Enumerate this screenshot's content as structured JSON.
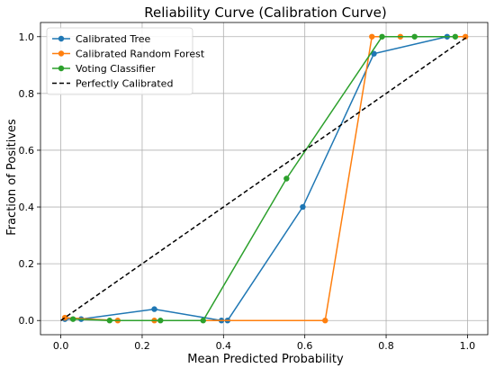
{
  "chart_data": {
    "type": "line",
    "title": "Reliability Curve (Calibration Curve)",
    "xlabel": "Mean Predicted Probability",
    "ylabel": "Fraction of Positives",
    "xlim": [
      -0.05,
      1.05
    ],
    "ylim": [
      -0.05,
      1.05
    ],
    "xticks": [
      0.0,
      0.2,
      0.4,
      0.6,
      0.8,
      1.0
    ],
    "yticks": [
      0.0,
      0.2,
      0.4,
      0.6,
      0.8,
      1.0
    ],
    "xtick_labels": [
      "0.0",
      "0.2",
      "0.4",
      "0.6",
      "0.8",
      "1.0"
    ],
    "ytick_labels": [
      "0.0",
      "0.2",
      "0.4",
      "0.6",
      "0.8",
      "1.0"
    ],
    "grid": true,
    "legend_position": "top-left",
    "series": [
      {
        "name": "Calibrated Tree",
        "color": "#1f77b4",
        "style": "line-marker",
        "x": [
          0.01,
          0.05,
          0.23,
          0.395,
          0.41,
          0.595,
          0.77,
          0.95
        ],
        "y": [
          0.005,
          0.005,
          0.04,
          0.0,
          0.0,
          0.4,
          0.94,
          1.0
        ]
      },
      {
        "name": "Calibrated Random Forest",
        "color": "#ff7f0e",
        "style": "line-marker",
        "x": [
          0.01,
          0.14,
          0.23,
          0.65,
          0.765,
          0.835,
          0.995
        ],
        "y": [
          0.01,
          0.0,
          0.0,
          0.0,
          1.0,
          1.0,
          1.0
        ]
      },
      {
        "name": "Voting Classifier",
        "color": "#2ca02c",
        "style": "line-marker",
        "x": [
          0.03,
          0.12,
          0.245,
          0.35,
          0.555,
          0.79,
          0.87,
          0.97
        ],
        "y": [
          0.005,
          0.0,
          0.0,
          0.0,
          0.5,
          1.0,
          1.0,
          1.0
        ]
      },
      {
        "name": "Perfectly Calibrated",
        "color": "#000000",
        "style": "dashed",
        "x": [
          0.0,
          1.0
        ],
        "y": [
          0.0,
          1.0
        ]
      }
    ]
  }
}
